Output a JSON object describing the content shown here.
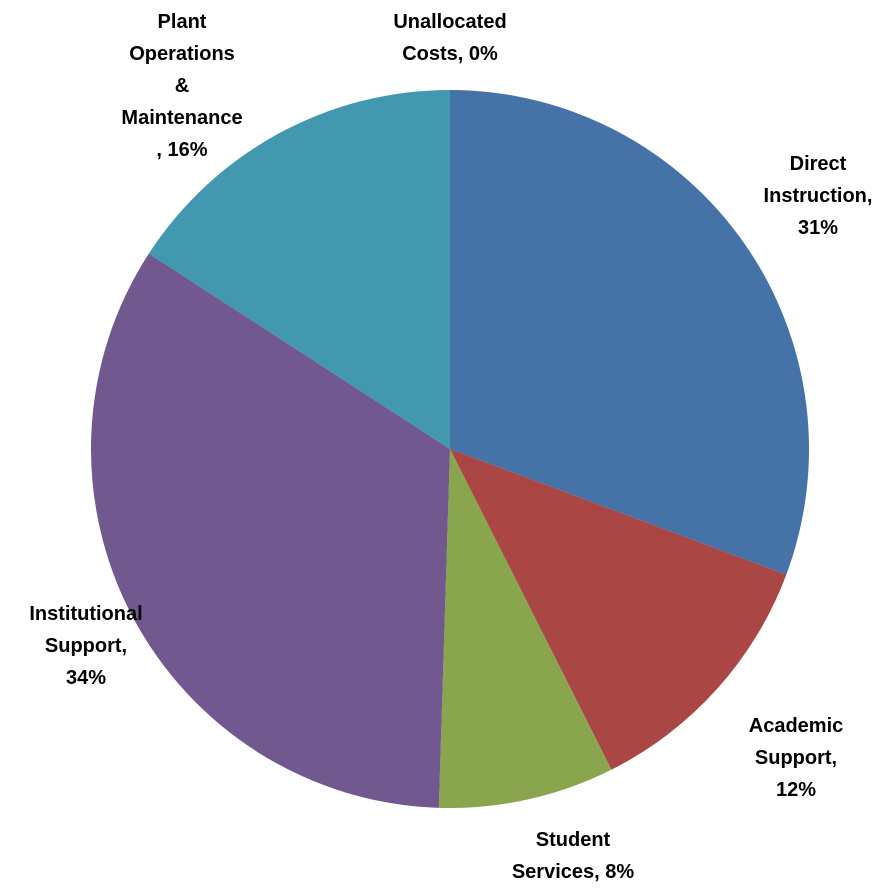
{
  "chart_data": {
    "type": "pie",
    "title": "",
    "start_angle_deg": 0,
    "direction": "clockwise",
    "slices": [
      {
        "name": "Direct Instruction",
        "value": 31,
        "color": "#4572A7",
        "label_lines": [
          "Direct",
          "Instruction,",
          "31%"
        ]
      },
      {
        "name": "Academic Support",
        "value": 12,
        "color": "#AA4643",
        "label_lines": [
          "Academic",
          "Support,",
          "12%"
        ]
      },
      {
        "name": "Student Services",
        "value": 8,
        "color": "#89A54E",
        "label_lines": [
          "Student",
          "Services, 8%"
        ]
      },
      {
        "name": "Institutional Support",
        "value": 34,
        "color": "#71588F",
        "label_lines": [
          "Institutional",
          "Support,",
          "34%"
        ]
      },
      {
        "name": "Plant Operations & Maintenance",
        "value": 16,
        "color": "#4198AF",
        "label_lines": [
          "Plant",
          "Operations",
          "&",
          "Maintenance",
          ", 16%"
        ]
      },
      {
        "name": "Unallocated Costs",
        "value": 0,
        "color": "#DB843D",
        "label_lines": [
          "Unallocated",
          "Costs, 0%"
        ]
      }
    ],
    "legend": "none"
  }
}
